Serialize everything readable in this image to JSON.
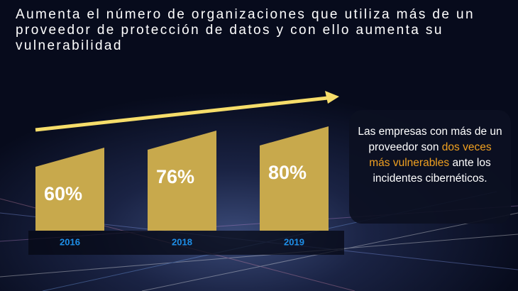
{
  "chart_data": {
    "type": "bar",
    "title": "Aumenta el número de organizaciones que utiliza más de un proveedor de protección de datos y con ello aumenta su vulnerabilidad",
    "categories": [
      "2016",
      "2018",
      "2019"
    ],
    "values": [
      60,
      76,
      80
    ],
    "value_labels": [
      "60%",
      "76%",
      "80%"
    ],
    "color": "#c8a94c",
    "category_color": "#1e8fe8"
  },
  "callout": {
    "text_before": "Las empresas con más de un proveedor son",
    "highlight": "dos veces más vulnerables",
    "text_after": "ante los incidentes cibernéticos."
  }
}
